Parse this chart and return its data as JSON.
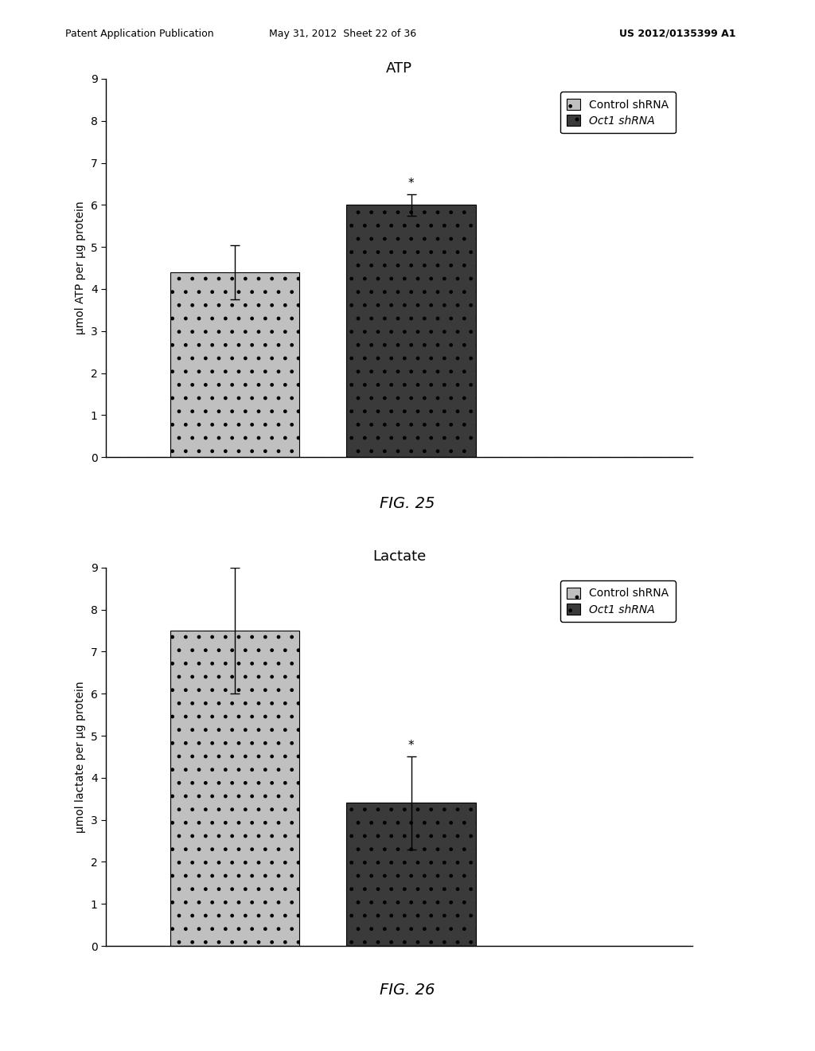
{
  "fig25": {
    "title": "ATP",
    "ylabel": "μmol ATP per μg protein",
    "values": [
      4.4,
      6.0
    ],
    "errors": [
      0.65,
      0.25
    ],
    "ylim": [
      0,
      9
    ],
    "yticks": [
      0,
      1,
      2,
      3,
      4,
      5,
      6,
      7,
      8,
      9
    ],
    "bar_colors": [
      "#c0c0c0",
      "#3a3a3a"
    ],
    "asterisk_bar": 1,
    "legend_labels": [
      "Control shRNA",
      "Oct1 shRNA"
    ],
    "legend_colors": [
      "#c0c0c0",
      "#3a3a3a"
    ],
    "fig_label": "FIG. 25",
    "x_positions": [
      0.22,
      0.52
    ],
    "bar_width": 0.22
  },
  "fig26": {
    "title": "Lactate",
    "ylabel": "μmol lactate per μg protein",
    "values": [
      7.5,
      3.4
    ],
    "errors": [
      1.5,
      1.1
    ],
    "ylim": [
      0,
      9
    ],
    "yticks": [
      0,
      1,
      2,
      3,
      4,
      5,
      6,
      7,
      8,
      9
    ],
    "bar_colors": [
      "#c0c0c0",
      "#3a3a3a"
    ],
    "asterisk_bar": 1,
    "legend_labels": [
      "Control shRNA",
      "Oct1 shRNA"
    ],
    "legend_colors": [
      "#c0c0c0",
      "#3a3a3a"
    ],
    "fig_label": "FIG. 26",
    "x_positions": [
      0.22,
      0.52
    ],
    "bar_width": 0.22
  },
  "header_left": "Patent Application Publication",
  "header_mid": "May 31, 2012  Sheet 22 of 36",
  "header_right": "US 2012/0135399 A1",
  "background_color": "#ffffff"
}
